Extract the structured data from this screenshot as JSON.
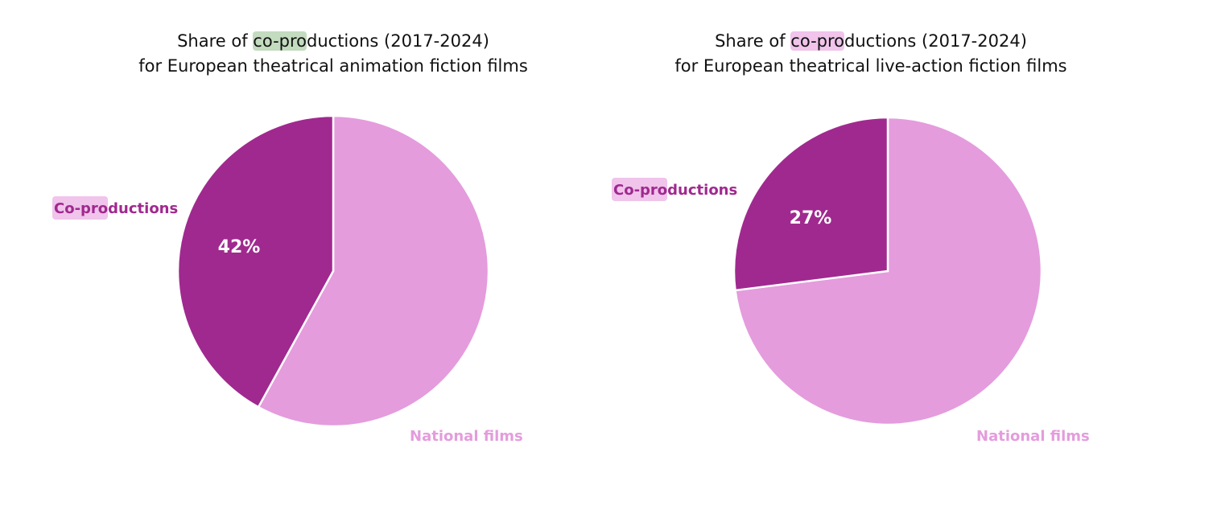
{
  "chart_data": [
    {
      "type": "pie",
      "title_lines": [
        "Share of co-productions (2017-2024)",
        "for European theatrical animation fiction films"
      ],
      "title_highlight": "co-pro",
      "title_highlight_color": "#c3dbbf",
      "slices": [
        {
          "label": "Co-productions",
          "value": 42,
          "value_label": "42%",
          "color": "#a0298f",
          "label_highlight": "#f0c4eb"
        },
        {
          "label": "National films",
          "value": 58,
          "value_label": "",
          "color": "#e49cdd"
        }
      ]
    },
    {
      "type": "pie",
      "title_lines": [
        "Share of co-productions (2017-2024)",
        "for European theatrical live-action fiction films"
      ],
      "title_highlight": "co-pro",
      "title_highlight_color": "#f0c4eb",
      "slices": [
        {
          "label": "Co-productions",
          "value": 27,
          "value_label": "27%",
          "color": "#a0298f",
          "label_highlight": "#f0c4eb"
        },
        {
          "label": "National films",
          "value": 73,
          "value_label": "",
          "color": "#e49cdd"
        }
      ]
    }
  ]
}
